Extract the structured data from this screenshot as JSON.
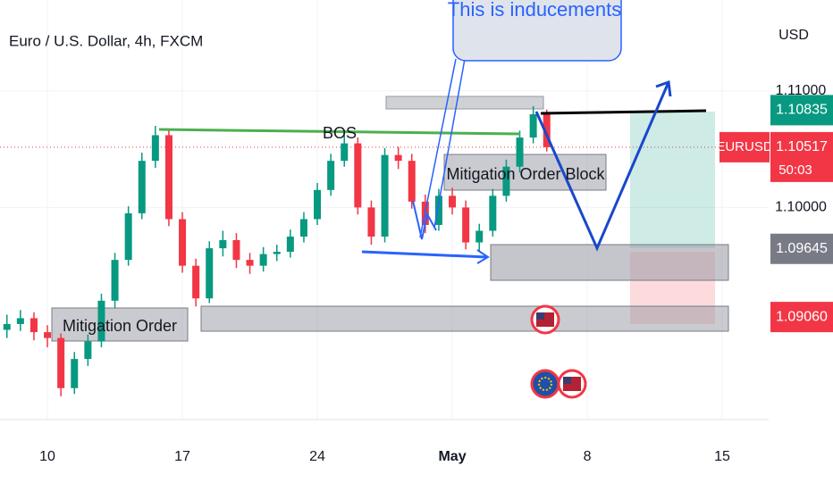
{
  "chart_data": {
    "type": "candlestick",
    "title": "Euro / U.S. Dollar, 4h, FXCM",
    "currency": "USD",
    "symbol_label": "EURUSD",
    "countdown": "50:03",
    "up_color": "#089981",
    "down_color": "#f23645",
    "grid": true,
    "xlim": [
      7.54,
      47.41
    ],
    "xticks": [
      10,
      17,
      24,
      {
        "value": 31,
        "label": "May"
      },
      {
        "value": 38,
        "label": "8"
      },
      {
        "value": 45,
        "label": "15"
      }
    ],
    "ylim": [
      1.0818,
      1.1178
    ],
    "yticks": [
      {
        "value": 1.1,
        "label": "1.10000"
      },
      {
        "value": 1.11,
        "label": "1.11000"
      }
    ],
    "x": [
      7.9,
      8.6,
      9.3,
      10,
      10.7,
      11.4,
      12.1,
      12.8,
      13.5,
      14.2,
      14.9,
      15.6,
      16.3,
      17,
      17.7,
      18.4,
      19.1,
      19.8,
      20.5,
      21.2,
      21.9,
      22.6,
      23.3,
      24,
      24.7,
      25.4,
      26.1,
      26.8,
      27.5,
      28.2,
      28.9,
      29.6,
      30.3,
      31,
      31.7,
      32.4,
      33.1,
      33.8,
      34.5,
      35.2,
      35.9
    ],
    "open": [
      1.0895,
      1.09,
      1.0905,
      1.0893,
      1.0888,
      1.0845,
      1.087,
      1.0885,
      1.092,
      1.0955,
      1.0995,
      1.104,
      1.1062,
      1.099,
      1.095,
      1.0922,
      1.0965,
      1.0972,
      1.0955,
      1.095,
      1.096,
      1.0962,
      1.0975,
      1.099,
      1.1015,
      1.104,
      1.1055,
      1.1,
      1.0975,
      1.1045,
      1.104,
      1.1005,
      1.0985,
      1.101,
      1.1,
      1.097,
      1.098,
      1.101,
      1.1035,
      1.106,
      1.108
    ],
    "high": [
      1.0908,
      1.0912,
      1.091,
      1.0899,
      1.0892,
      1.0876,
      1.0891,
      1.0926,
      1.0961,
      1.1001,
      1.1047,
      1.107,
      1.1066,
      1.0996,
      1.0956,
      1.0971,
      1.098,
      1.0978,
      1.0961,
      1.0966,
      1.0968,
      1.0981,
      1.0996,
      1.1021,
      1.1046,
      1.1062,
      1.106,
      1.1006,
      1.1051,
      1.1052,
      1.1046,
      1.1011,
      1.1016,
      1.1017,
      1.1006,
      1.0986,
      1.1016,
      1.1041,
      1.1066,
      1.1087,
      1.1084
    ],
    "low": [
      1.0888,
      1.0894,
      1.0886,
      1.088,
      1.0838,
      1.084,
      1.0864,
      1.088,
      1.0914,
      1.095,
      1.099,
      1.1034,
      1.0984,
      1.0944,
      1.0915,
      1.0918,
      1.0958,
      1.0948,
      1.0943,
      1.0945,
      1.0954,
      1.0957,
      1.097,
      1.0985,
      1.101,
      1.1035,
      1.0994,
      1.0968,
      1.097,
      1.1033,
      1.0999,
      1.0978,
      1.098,
      1.0994,
      1.0964,
      1.0962,
      1.0975,
      1.1005,
      1.103,
      1.1055,
      1.1048
    ],
    "close": [
      1.09,
      1.0905,
      1.0893,
      1.0888,
      1.0845,
      1.087,
      1.0885,
      1.092,
      1.0955,
      1.0995,
      1.104,
      1.1062,
      1.099,
      1.095,
      1.0922,
      1.0965,
      1.0972,
      1.0955,
      1.095,
      1.096,
      1.0962,
      1.0975,
      1.099,
      1.1015,
      1.104,
      1.1055,
      1.1,
      1.0975,
      1.1045,
      1.104,
      1.1005,
      1.0985,
      1.101,
      1.1,
      1.097,
      1.098,
      1.101,
      1.1035,
      1.106,
      1.108,
      1.10517
    ],
    "price_labels": [
      {
        "value": 1.10835,
        "color": "#089981"
      },
      {
        "value": 1.10517,
        "color": "#f23645"
      },
      {
        "value": 1.09645,
        "color": "#787b86"
      },
      {
        "value": 1.0906,
        "label": "1.09060",
        "color": "#f23645"
      }
    ],
    "annotations": {
      "bos": "BOS",
      "mitigation_order": "Mitigation Order",
      "mitigation_order_block": "Mitigation Order Block",
      "inducements": "This is inducements"
    }
  }
}
